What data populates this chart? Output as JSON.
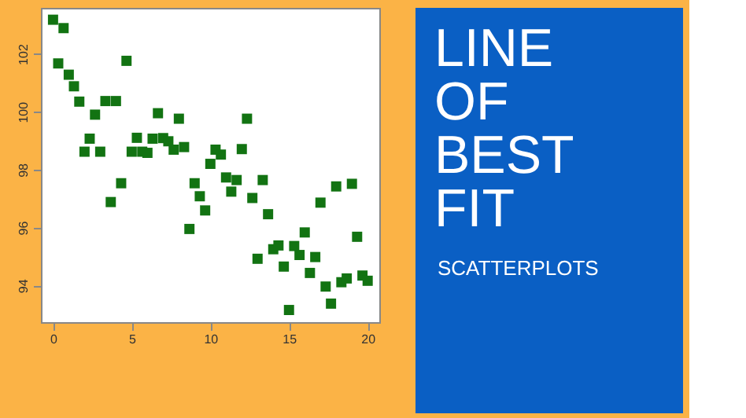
{
  "chart_data": [
    {
      "type": "scatter",
      "marker": "square",
      "grid": false,
      "x": [
        0,
        0.33,
        0.67,
        1.0,
        1.33,
        1.67,
        2.0,
        2.33,
        2.67,
        3.0,
        3.33,
        3.67,
        4.0,
        4.33,
        4.67,
        5.0,
        5.33,
        5.67,
        6.0,
        6.33,
        6.67,
        7.0,
        7.33,
        7.67,
        8.0,
        8.33,
        8.67,
        9.0,
        9.33,
        9.67,
        10.0,
        10.33,
        10.67,
        11.0,
        11.33,
        11.67,
        12.0,
        12.33,
        12.67,
        13.0,
        13.33,
        13.67,
        14.0,
        14.33,
        14.67,
        15.0,
        15.33,
        15.67,
        16.0,
        16.33,
        16.67,
        17.0,
        17.33,
        17.67,
        18.0,
        18.33,
        18.67,
        19.0,
        19.33,
        19.67,
        20.0
      ],
      "series": [
        {
          "color": "#127312",
          "values": [
            103.18,
            101.67,
            102.89,
            101.28,
            100.88,
            100.35,
            98.62,
            99.07,
            99.9,
            98.62,
            100.37,
            96.88,
            100.37,
            97.53,
            101.76,
            98.62,
            99.1,
            98.62,
            98.58,
            99.07,
            99.95,
            99.09,
            98.98,
            98.69,
            99.76,
            98.78,
            95.95,
            97.53,
            97.08,
            96.59,
            98.2,
            98.69,
            98.52,
            97.73,
            97.24,
            97.64,
            98.71,
            99.76,
            97.02,
            94.92,
            97.64,
            96.46,
            95.25,
            95.38,
            94.65,
            93.15,
            95.36,
            95.05,
            95.83,
            94.43,
            94.98,
            96.86,
            93.96,
            93.37,
            97.42,
            94.11,
            94.24,
            97.51,
            95.68,
            94.34,
            94.16
          ]
        }
      ],
      "xlim": [
        -0.77,
        20.74
      ],
      "xticks": [
        0,
        5,
        10,
        15,
        20
      ],
      "ylim": [
        92.73,
        103.59
      ],
      "yticks": [
        94,
        96,
        98,
        100,
        102
      ]
    },
    {
      "type": "other",
      "title": "LINE OF BEST FIT",
      "subtitle": "SCATTERPLOTS"
    }
  ]
}
